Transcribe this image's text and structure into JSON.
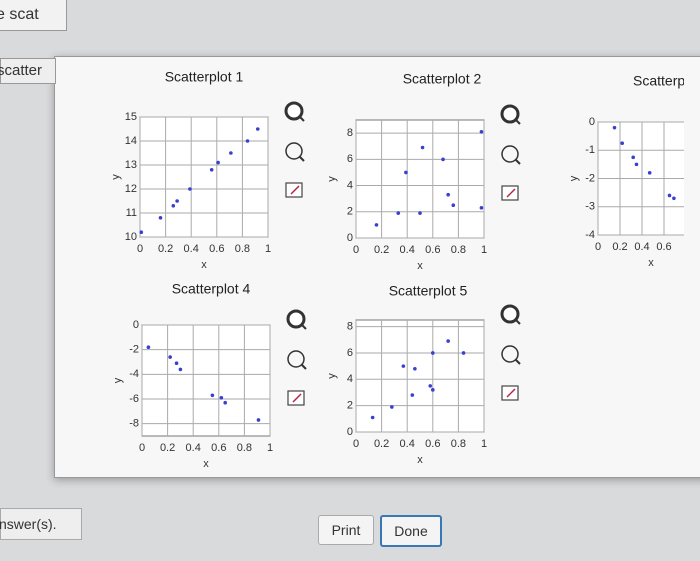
{
  "page": {
    "search": "e scat",
    "tab": "scatter",
    "answer": "nswer(s).",
    "buttons": [
      "Print",
      "Done"
    ]
  },
  "chart_data": [
    {
      "type": "scatter",
      "title": "Scatterplot 1",
      "xlabel": "x",
      "ylabel": "y",
      "color": "#3a3fd0",
      "grid": true,
      "x": [
        0.01,
        0.16,
        0.26,
        0.29,
        0.39,
        0.56,
        0.61,
        0.71,
        0.84,
        0.92
      ],
      "values": [
        10.2,
        10.8,
        11.3,
        11.5,
        12.0,
        12.8,
        13.1,
        13.5,
        14.0,
        14.5
      ],
      "xlim": [
        0,
        1
      ],
      "ylim": [
        10,
        15
      ],
      "xticks": [
        0,
        0.2,
        0.4,
        0.6,
        0.8,
        1
      ],
      "yticks": [
        10,
        11,
        12,
        13,
        14,
        15
      ]
    },
    {
      "type": "scatter",
      "title": "Scatterplot 2",
      "xlabel": "x",
      "ylabel": "y",
      "color": "#3a3fd0",
      "grid": true,
      "x": [
        0.16,
        0.33,
        0.5,
        0.39,
        0.52,
        0.68,
        0.72,
        0.76,
        0.98,
        0.98
      ],
      "values": [
        1.0,
        1.9,
        1.9,
        5.0,
        6.9,
        6.0,
        3.3,
        2.5,
        2.3,
        8.1
      ],
      "xlim": [
        0,
        1
      ],
      "ylim": [
        0,
        9
      ],
      "xticks": [
        0,
        0.2,
        0.4,
        0.6,
        0.8,
        1
      ],
      "yticks": [
        0,
        2,
        4,
        6,
        8
      ]
    },
    {
      "type": "scatter",
      "title": "Scatterpl",
      "xlabel": "x",
      "ylabel": "y",
      "color": "#3a3fd0",
      "grid": true,
      "x": [
        0.15,
        0.22,
        0.32,
        0.35,
        0.47,
        0.65,
        0.69
      ],
      "values": [
        -0.2,
        -0.75,
        -1.25,
        -1.5,
        -1.8,
        -2.6,
        -2.7
      ],
      "xlim": [
        0,
        1
      ],
      "ylim": [
        -4,
        0
      ],
      "xticks": [
        0,
        0.2,
        0.4,
        0.6
      ],
      "yticks": [
        -4,
        -3,
        -2,
        -1,
        0
      ]
    },
    {
      "type": "scatter",
      "title": "Scatterplot 4",
      "xlabel": "x",
      "ylabel": "y",
      "color": "#3a3fd0",
      "grid": true,
      "x": [
        0.05,
        0.22,
        0.27,
        0.3,
        0.55,
        0.62,
        0.65,
        0.91
      ],
      "values": [
        -1.8,
        -2.6,
        -3.1,
        -3.6,
        -5.7,
        -5.9,
        -6.3,
        -7.7
      ],
      "xlim": [
        0,
        1
      ],
      "ylim": [
        -9,
        0
      ],
      "xticks": [
        0,
        0.2,
        0.4,
        0.6,
        0.8,
        1
      ],
      "yticks": [
        -8,
        -6,
        -4,
        -2,
        0
      ]
    },
    {
      "type": "scatter",
      "title": "Scatterplot 5",
      "xlabel": "x",
      "ylabel": "y",
      "color": "#3a3fd0",
      "grid": true,
      "x": [
        0.13,
        0.28,
        0.44,
        0.37,
        0.46,
        0.6,
        0.58,
        0.6,
        0.72,
        0.84
      ],
      "values": [
        1.1,
        1.9,
        2.8,
        5.0,
        4.8,
        6.0,
        3.5,
        3.2,
        6.9,
        6.0
      ],
      "xlim": [
        0,
        1
      ],
      "ylim": [
        0,
        8.5
      ],
      "xticks": [
        0,
        0.2,
        0.4,
        0.6,
        0.8,
        1
      ],
      "yticks": [
        0,
        2,
        4,
        6,
        8
      ]
    }
  ]
}
